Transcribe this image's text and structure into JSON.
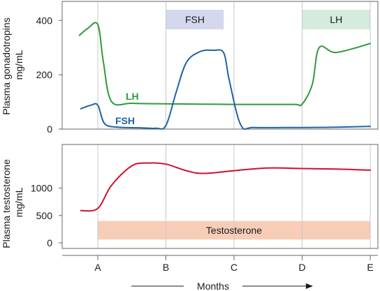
{
  "colors": {
    "lh": "#2e9a3c",
    "fsh": "#1f63a5",
    "testosterone": "#d0112b",
    "fsh_box": "#d3d8ee",
    "lh_box": "#d4ebdd",
    "testosterone_box": "#f8cdb8",
    "grid": "#c8c8c8",
    "frame": "#666666"
  },
  "x_axis": {
    "ticks": [
      "A",
      "B",
      "C",
      "D",
      "E"
    ],
    "label": "Months"
  },
  "chart_data": [
    {
      "type": "line",
      "title": "",
      "ylabel_lines": [
        "Plasma gonadotropins",
        "mg/mL"
      ],
      "ylim": [
        0,
        470
      ],
      "yticks": [
        0,
        200,
        400
      ],
      "grid": true,
      "x_categories": [
        "A",
        "B",
        "C",
        "D",
        "E"
      ],
      "series": [
        {
          "name": "LH",
          "color": "#2e9a3c",
          "x": [
            -0.27,
            -0.15,
            0,
            0.08,
            0.2,
            0.5,
            1,
            1.5,
            2,
            2.5,
            2.9,
            3,
            3.15,
            3.25,
            3.5,
            4
          ],
          "y": [
            345,
            370,
            385,
            250,
            102,
            95,
            93,
            92,
            91,
            91,
            91,
            92,
            165,
            300,
            282,
            315
          ]
        },
        {
          "name": "FSH",
          "color": "#1f63a5",
          "x": [
            -0.25,
            -0.1,
            0,
            0.1,
            0.3,
            0.6,
            0.85,
            1,
            1.15,
            1.3,
            1.5,
            1.7,
            1.85,
            1.93,
            2.1,
            2.3,
            3,
            3.5,
            4
          ],
          "y": [
            75,
            88,
            88,
            20,
            7,
            5,
            3,
            13,
            135,
            245,
            285,
            290,
            280,
            180,
            15,
            6,
            6,
            7,
            10
          ]
        }
      ],
      "boxes": [
        {
          "label": "FSH",
          "x_from": 1,
          "x_to": 1.85,
          "color": "#d3d8ee"
        },
        {
          "label": "LH",
          "x_from": 3,
          "x_to": 4,
          "color": "#d4ebdd"
        }
      ]
    },
    {
      "type": "line",
      "title": "",
      "ylabel_lines": [
        "Plasma testosterone",
        "mg/mL"
      ],
      "ylim": [
        0,
        1800
      ],
      "yticks": [
        0,
        500,
        1000
      ],
      "grid": true,
      "x_categories": [
        "A",
        "B",
        "C",
        "D",
        "E"
      ],
      "series": [
        {
          "name": "",
          "color": "#d0112b",
          "x": [
            -0.25,
            0,
            0.2,
            0.5,
            0.75,
            1,
            1.3,
            1.55,
            2,
            2.5,
            3,
            3.5,
            4
          ],
          "y": [
            590,
            630,
            1050,
            1410,
            1460,
            1440,
            1320,
            1270,
            1320,
            1370,
            1360,
            1350,
            1330
          ]
        }
      ],
      "boxes": [
        {
          "label": "Testosterone",
          "x_from": 0,
          "x_to": 4,
          "y_from": 60,
          "y_to": 400,
          "color": "#f8cdb8"
        }
      ]
    }
  ]
}
